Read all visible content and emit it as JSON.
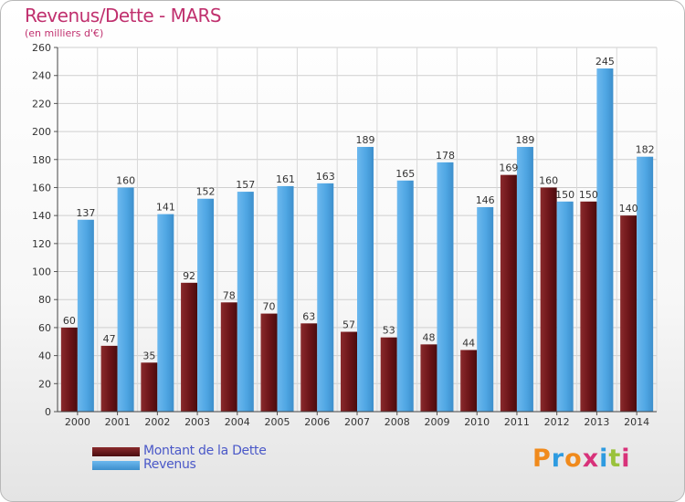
{
  "title": "Revenus/Dette - MARS",
  "subtitle": "(en milliers d'€)",
  "legend": {
    "placement": "bottom-left",
    "items": [
      {
        "label": "Montant de la Dette",
        "color": "#6b1418"
      },
      {
        "label": "Revenus",
        "color": "#4fa6e3"
      }
    ]
  },
  "logo": {
    "text": "Proxiti",
    "colors": [
      "#f08a1c",
      "#2e9be0",
      "#f08a1c",
      "#d8327a",
      "#2e9be0",
      "#9ac23c",
      "#d8327a"
    ]
  },
  "chart_data": {
    "type": "bar",
    "categories": [
      "2000",
      "2001",
      "2002",
      "2003",
      "2004",
      "2005",
      "2006",
      "2007",
      "2008",
      "2009",
      "2010",
      "2011",
      "2012",
      "2013",
      "2014"
    ],
    "series": [
      {
        "name": "Montant de la Dette",
        "color": "#6b1418",
        "values": [
          60,
          47,
          35,
          92,
          78,
          70,
          63,
          57,
          53,
          48,
          44,
          169,
          160,
          150,
          140
        ]
      },
      {
        "name": "Revenus",
        "color": "#4fa6e3",
        "values": [
          137,
          160,
          141,
          152,
          157,
          161,
          163,
          189,
          165,
          178,
          146,
          189,
          150,
          245,
          182
        ]
      }
    ],
    "ylim": [
      0,
      260
    ],
    "yticks": [
      0,
      20,
      40,
      60,
      80,
      100,
      120,
      140,
      160,
      180,
      200,
      220,
      240,
      260
    ],
    "grid": true,
    "xlabel": "",
    "ylabel": ""
  }
}
